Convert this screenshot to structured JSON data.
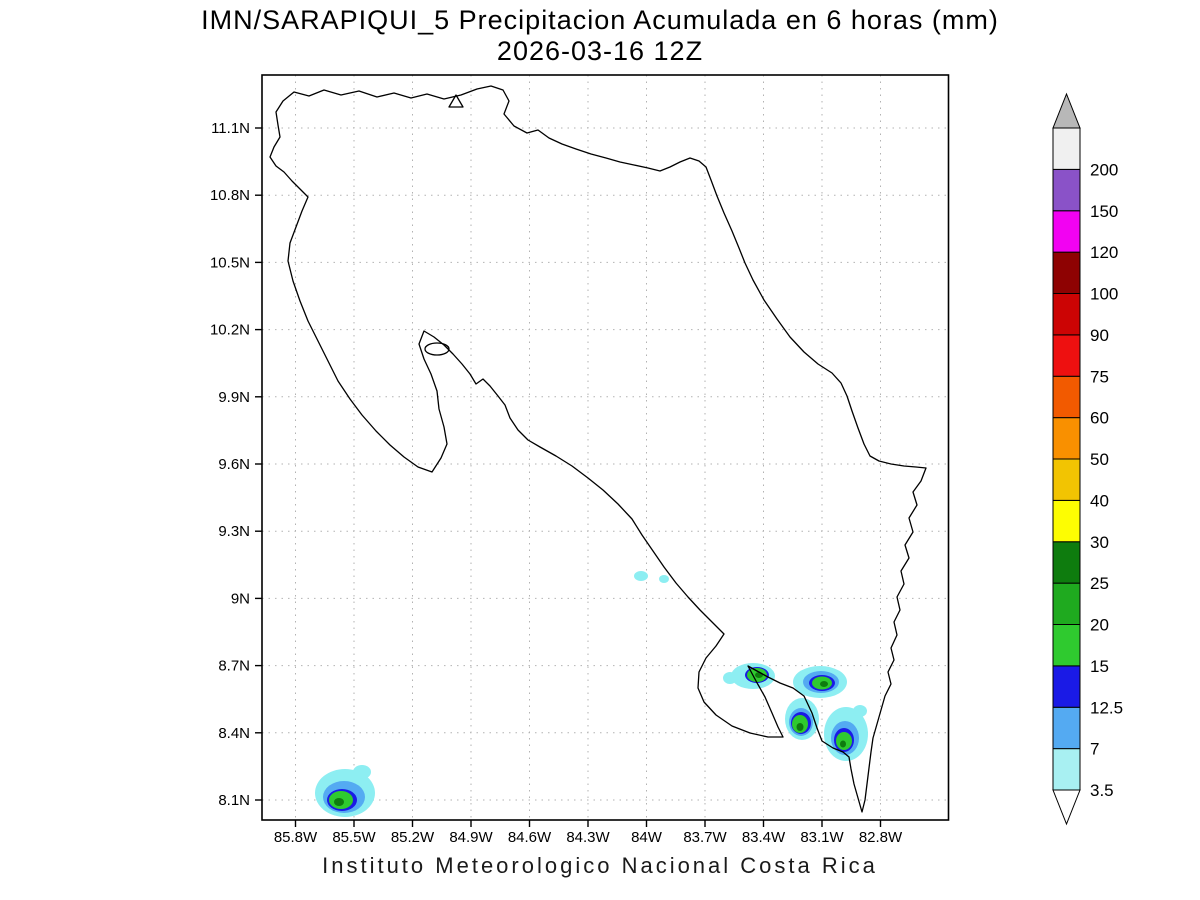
{
  "title": {
    "line1": "IMN/SARAPIQUI_5 Precipitacion Acumulada en 6 horas (mm)",
    "line2": "2026-03-16 12Z"
  },
  "footer": "Instituto Meteorologico Nacional Costa Rica",
  "axes": {
    "y_ticks": [
      "11.1N",
      "10.8N",
      "10.5N",
      "10.2N",
      "9.9N",
      "9.6N",
      "9.3N",
      "9N",
      "8.7N",
      "8.4N",
      "8.1N"
    ],
    "x_ticks": [
      "85.8W",
      "85.5W",
      "85.2W",
      "84.9W",
      "84.6W",
      "84.3W",
      "84W",
      "83.7W",
      "83.4W",
      "83.1W",
      "82.8W"
    ]
  },
  "colorbar": {
    "labels_top_to_bottom": [
      "200",
      "150",
      "120",
      "100",
      "90",
      "75",
      "60",
      "50",
      "40",
      "30",
      "25",
      "20",
      "15",
      "12.5",
      "7",
      "3.5"
    ],
    "segments_bottom_to_top": [
      {
        "range": "3.5-7",
        "color": "#a8f0f2"
      },
      {
        "range": "7-12.5",
        "color": "#54aaf2"
      },
      {
        "range": "12.5-15",
        "color": "#1a1ae6"
      },
      {
        "range": "15-20",
        "color": "#2fca2f"
      },
      {
        "range": "20-25",
        "color": "#1faa1f"
      },
      {
        "range": "25-30",
        "color": "#0e7c0e"
      },
      {
        "range": "30-40",
        "color": "#fdfd02"
      },
      {
        "range": "40-50",
        "color": "#f2c402"
      },
      {
        "range": "50-60",
        "color": "#f99000"
      },
      {
        "range": "60-75",
        "color": "#f25a00"
      },
      {
        "range": "75-90",
        "color": "#ee1010"
      },
      {
        "range": "90-100",
        "color": "#cc0404"
      },
      {
        "range": "100-120",
        "color": "#8e0202"
      },
      {
        "range": "120-150",
        "color": "#f202f2"
      },
      {
        "range": "150-200",
        "color": "#8a52c8"
      },
      {
        "range": ">200",
        "color": "#f0f0f0"
      }
    ],
    "arrow_top_color": "#b8b8b8",
    "arrow_bottom_color": "#ffffff"
  },
  "chart_data": {
    "type": "heatmap",
    "subtype": "filled-contour precipitation map",
    "title": "IMN/SARAPIQUI_5 Precipitacion Acumulada en 6 horas (mm)",
    "valid_time": "2026-03-16 12Z",
    "units": "mm",
    "region": "Costa Rica",
    "lon_range_W": [
      86.0,
      82.45
    ],
    "lat_range_N": [
      8.0,
      11.33
    ],
    "x_tick_values_W": [
      85.8,
      85.5,
      85.2,
      84.9,
      84.6,
      84.3,
      84.0,
      83.7,
      83.4,
      83.1,
      82.8
    ],
    "y_tick_values_N": [
      11.1,
      10.8,
      10.5,
      10.2,
      9.9,
      9.6,
      9.3,
      9.0,
      8.7,
      8.4,
      8.1
    ],
    "contour_levels_mm": [
      3.5,
      7,
      12.5,
      15,
      20,
      25,
      30,
      40,
      50,
      60,
      75,
      90,
      100,
      120,
      150,
      200
    ],
    "grid": "dotted",
    "legend_position": "right vertical colorbar with overflow arrows",
    "precipitation_features": [
      {
        "lon_W": 85.55,
        "lat_N": 8.12,
        "peak_band_mm": "25-30",
        "note": "cell near southwest corner on Pacific coast"
      },
      {
        "lon_W": 85.45,
        "lat_N": 8.22,
        "peak_band_mm": "3.5-7",
        "note": "small cyan dot"
      },
      {
        "lon_W": 84.05,
        "lat_N": 9.1,
        "peak_band_mm": "3.5-7",
        "note": "two tiny cyan dots offshore"
      },
      {
        "lon_W": 83.45,
        "lat_N": 8.63,
        "peak_band_mm": "25-30",
        "note": "cell over Osa area"
      },
      {
        "lon_W": 83.1,
        "lat_N": 8.62,
        "peak_band_mm": "25-30",
        "note": "cell near Golfito"
      },
      {
        "lon_W": 83.2,
        "lat_N": 8.45,
        "peak_band_mm": "25-30",
        "note": "cell over Golfo Dulce"
      },
      {
        "lon_W": 83.0,
        "lat_N": 8.37,
        "peak_band_mm": "25-30",
        "note": "cell near Burica peninsula"
      }
    ]
  }
}
